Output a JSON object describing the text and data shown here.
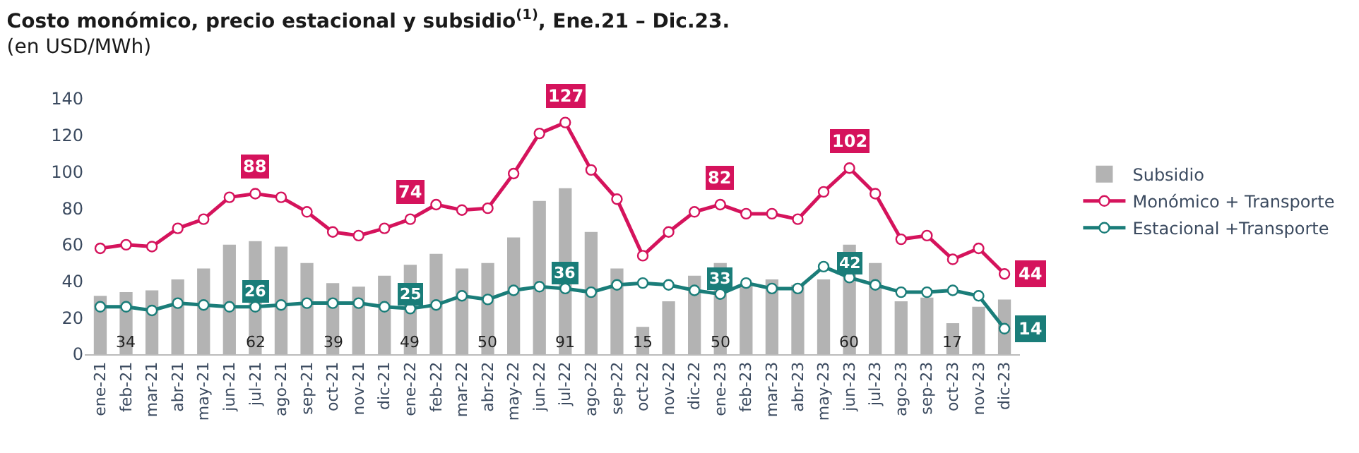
{
  "chart_data": {
    "type": "line",
    "title": "Costo monómico, precio estacional y subsidio$^{(1)}$, Ene.21 – Dic.23.",
    "subtitle": "(en USD/MWh)",
    "categories": [
      "ene-21",
      "feb-21",
      "mar-21",
      "abr-21",
      "may-21",
      "jun-21",
      "jul-21",
      "ago-21",
      "sep-21",
      "oct-21",
      "nov-21",
      "dic-21",
      "ene-22",
      "feb-22",
      "mar-22",
      "abr-22",
      "may-22",
      "jun-22",
      "jul-22",
      "ago-22",
      "sep-22",
      "oct-22",
      "nov-22",
      "dic-22",
      "ene-23",
      "feb-23",
      "mar-23",
      "abr-23",
      "may-23",
      "jun-23",
      "jul-23",
      "ago-23",
      "sep-23",
      "oct-23",
      "nov-23",
      "dic-23"
    ],
    "series": [
      {
        "name": "Subsidio",
        "type": "bar",
        "color": "#b3b3b3",
        "values": [
          32,
          34,
          35,
          41,
          47,
          60,
          62,
          59,
          50,
          39,
          37,
          43,
          49,
          55,
          47,
          50,
          64,
          84,
          91,
          67,
          47,
          15,
          29,
          43,
          50,
          38,
          41,
          38,
          41,
          60,
          50,
          29,
          31,
          17,
          26,
          30
        ],
        "value_labels": [
          null,
          "34",
          null,
          null,
          null,
          null,
          "62",
          null,
          null,
          "39",
          null,
          null,
          "49",
          null,
          null,
          "50",
          null,
          null,
          "91",
          null,
          null,
          "15",
          null,
          null,
          "50",
          null,
          null,
          null,
          null,
          "60",
          null,
          null,
          null,
          "17",
          null,
          null
        ]
      },
      {
        "name": "Monómico + Transporte",
        "color": "#d5135c",
        "values": [
          58,
          60,
          59,
          69,
          74,
          86,
          88,
          86,
          78,
          67,
          65,
          69,
          74,
          82,
          79,
          80,
          99,
          121,
          127,
          101,
          85,
          54,
          67,
          78,
          82,
          77,
          77,
          74,
          89,
          102,
          88,
          63,
          65,
          52,
          58,
          44
        ],
        "value_labels": [
          null,
          null,
          null,
          null,
          null,
          null,
          "88",
          null,
          null,
          null,
          null,
          null,
          "74",
          null,
          null,
          null,
          null,
          null,
          "127",
          null,
          null,
          null,
          null,
          null,
          "82",
          null,
          null,
          null,
          null,
          "102",
          null,
          null,
          null,
          null,
          null,
          "44"
        ]
      },
      {
        "name": "Estacional +Transporte",
        "color": "#1a7d79",
        "values": [
          26,
          26,
          24,
          28,
          27,
          26,
          26,
          27,
          28,
          28,
          28,
          26,
          25,
          27,
          32,
          30,
          35,
          37,
          36,
          34,
          38,
          39,
          38,
          35,
          33,
          39,
          36,
          36,
          48,
          42,
          38,
          34,
          34,
          35,
          32,
          14
        ],
        "value_labels": [
          null,
          null,
          null,
          null,
          null,
          null,
          "26",
          null,
          null,
          null,
          null,
          null,
          "25",
          null,
          null,
          null,
          null,
          null,
          "36",
          null,
          null,
          null,
          null,
          null,
          "33",
          null,
          null,
          null,
          null,
          "42",
          null,
          null,
          null,
          null,
          null,
          "14"
        ]
      }
    ],
    "ylim": [
      0,
      140
    ],
    "yticks": [
      0,
      20,
      40,
      60,
      80,
      100,
      120,
      140
    ],
    "grid": false,
    "legend": "right",
    "marker": "circle",
    "line_style": "solid"
  }
}
